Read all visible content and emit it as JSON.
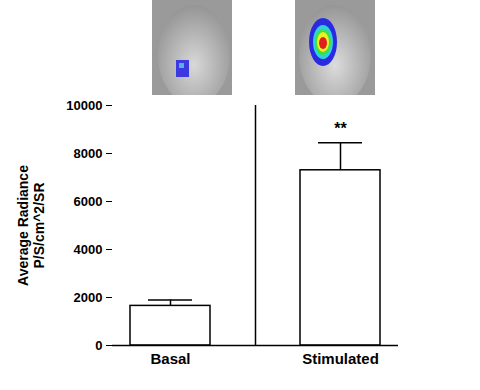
{
  "chart_data": {
    "type": "bar",
    "categories": [
      "Basal",
      "Stimulated"
    ],
    "values": [
      1650,
      7300
    ],
    "errors": [
      250,
      1150
    ],
    "color": "#ffffff",
    "ylabel": "Average Radiance\nP/S/cm^2/SR",
    "ylim": [
      0,
      10000
    ],
    "yticks": [
      0,
      2000,
      4000,
      6000,
      8000,
      10000
    ],
    "annotations": [
      {
        "category": "Stimulated",
        "text": "**"
      }
    ]
  }
}
